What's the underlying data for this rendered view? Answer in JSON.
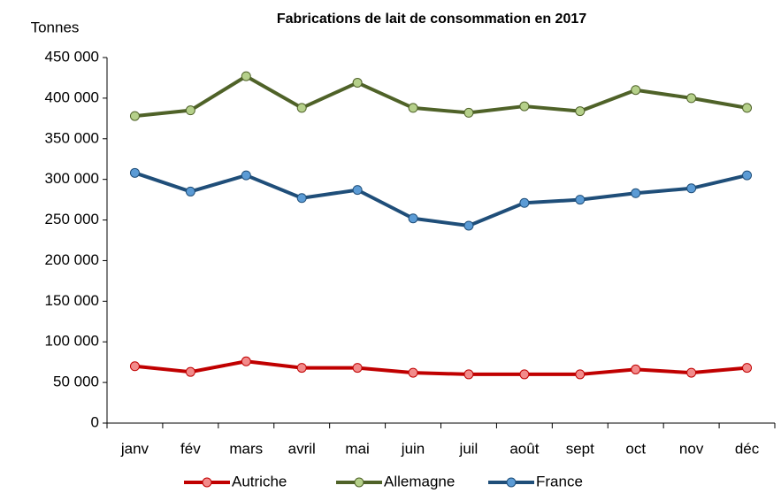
{
  "chart_data": {
    "type": "line",
    "title": "Fabrications de lait de consommation en 2017",
    "ylabel": "Tonnes",
    "categories": [
      "janv",
      "fév",
      "mars",
      "avril",
      "mai",
      "juin",
      "juil",
      "août",
      "sept",
      "oct",
      "nov",
      "déc"
    ],
    "series": [
      {
        "name": "Autriche",
        "color": "#c00000",
        "marker_color": "#f28b8b",
        "values": [
          70000,
          63000,
          76000,
          68000,
          68000,
          62000,
          60000,
          60000,
          60000,
          66000,
          62000,
          68000
        ]
      },
      {
        "name": "Allemagne",
        "color": "#4f6228",
        "marker_color": "#b5d08a",
        "values": [
          378000,
          385000,
          427000,
          388000,
          419000,
          388000,
          382000,
          390000,
          384000,
          410000,
          400000,
          388000
        ]
      },
      {
        "name": "France",
        "color": "#1f4e79",
        "marker_color": "#5b9bd5",
        "values": [
          308000,
          285000,
          305000,
          277000,
          287000,
          252000,
          243000,
          271000,
          275000,
          283000,
          289000,
          305000
        ]
      }
    ],
    "ylim": [
      0,
      450000
    ],
    "yticks": [
      0,
      {
        "value": 50000,
        "label": "50 000"
      },
      {
        "value": 100000,
        "label": "100 000"
      },
      {
        "value": 150000,
        "label": "150 000"
      },
      {
        "value": 200000,
        "label": "200 000"
      },
      {
        "value": 250000,
        "label": "250 000"
      },
      {
        "value": 300000,
        "label": "300 000"
      },
      {
        "value": 350000,
        "label": "350 000"
      },
      {
        "value": 400000,
        "label": "400 000"
      },
      {
        "value": 450000,
        "label": "450 000"
      }
    ],
    "grid": false,
    "legend": "bottom"
  }
}
